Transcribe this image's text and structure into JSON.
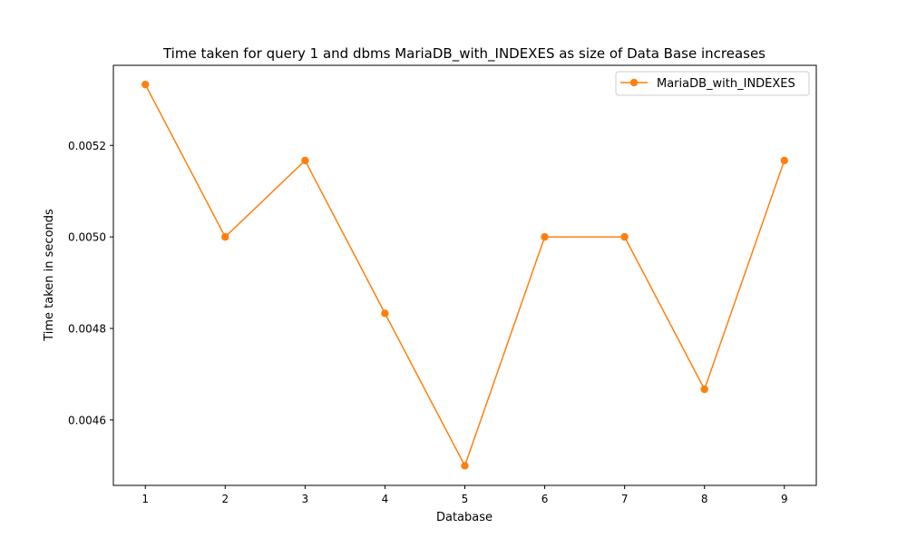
{
  "chart_data": {
    "type": "line",
    "title": "Time taken for query 1 and dbms MariaDB_with_INDEXES as size of Data Base increases",
    "xlabel": "Database",
    "ylabel": "Time taken in seconds",
    "x": [
      1,
      2,
      3,
      4,
      5,
      6,
      7,
      8,
      9
    ],
    "xticks": [
      "1",
      "2",
      "3",
      "4",
      "5",
      "6",
      "7",
      "8",
      "9"
    ],
    "xlim": [
      0.6,
      9.4
    ],
    "yticks": [
      "0.0046",
      "0.0048",
      "0.0050",
      "0.0052"
    ],
    "ytick_values": [
      0.0046,
      0.0048,
      0.005,
      0.0052
    ],
    "ylim": [
      0.004457,
      0.005375
    ],
    "grid": false,
    "legend_position": "top-right",
    "series": [
      {
        "name": "MariaDB_with_INDEXES",
        "color": "#ff7f0e",
        "marker": "circle",
        "values": [
          0.005333,
          0.005,
          0.005167,
          0.004833,
          0.0045,
          0.005,
          0.005,
          0.004667,
          0.005167
        ]
      }
    ]
  }
}
